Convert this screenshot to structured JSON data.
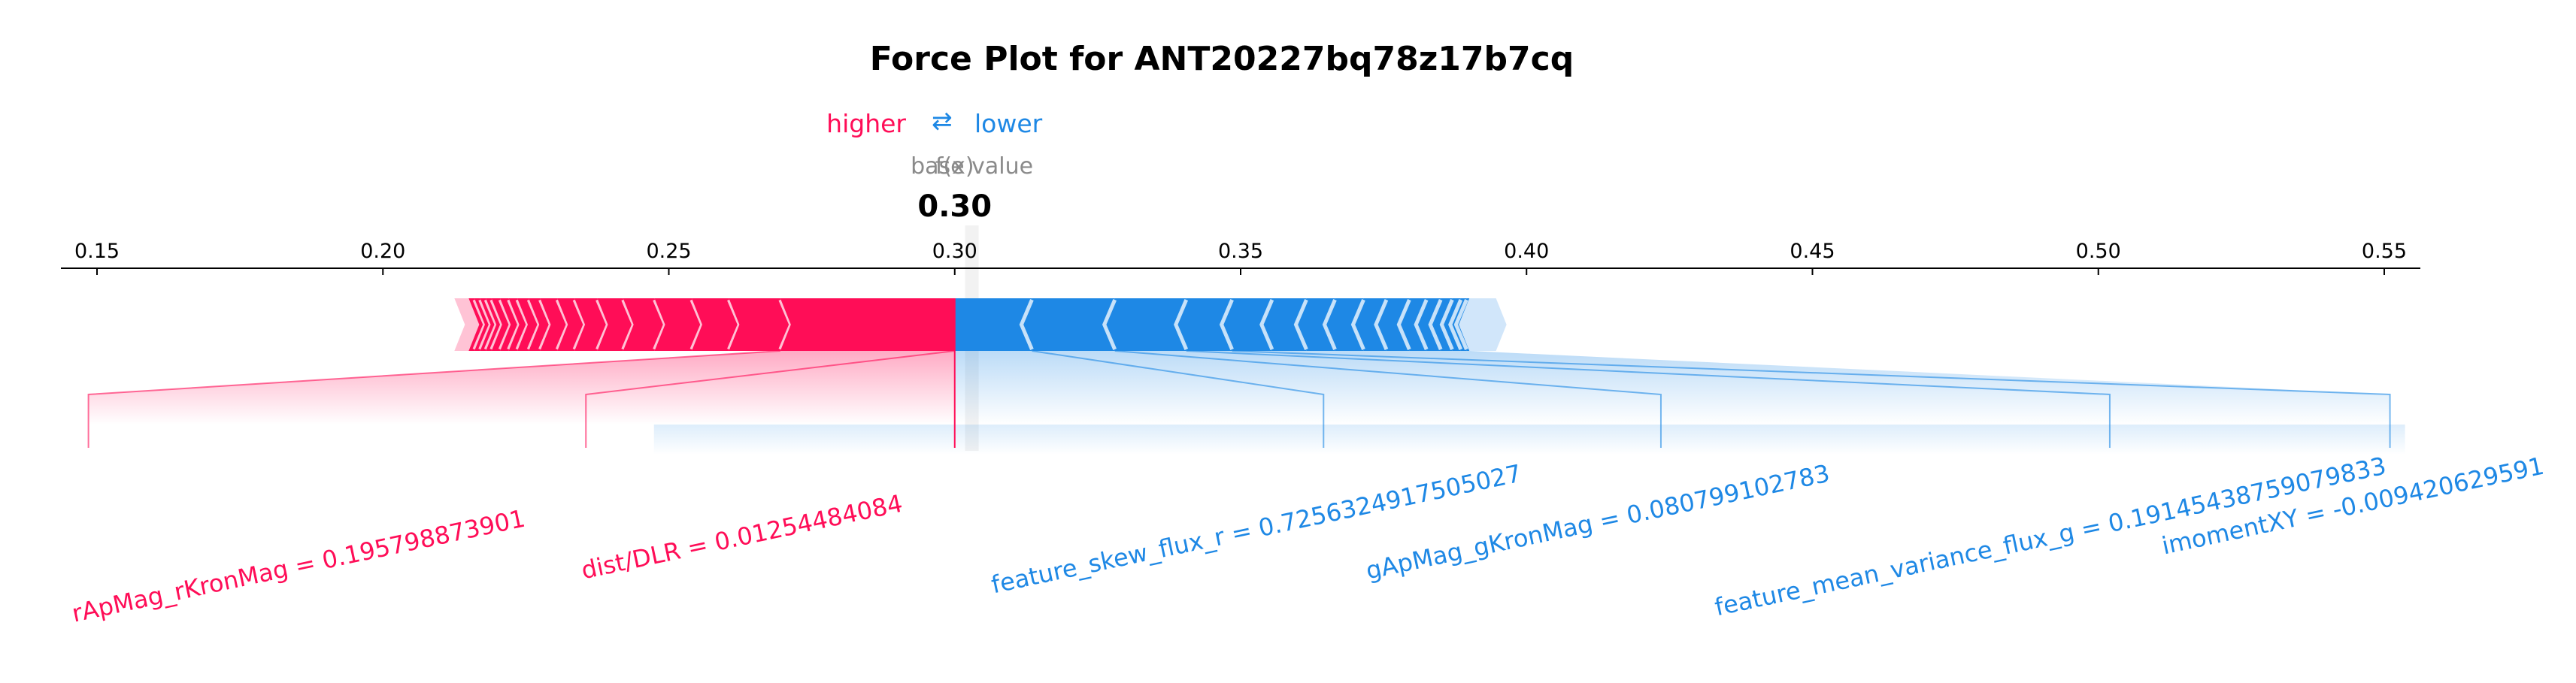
{
  "chart_data": {
    "type": "force",
    "title": "Force Plot for ANT20227bq78z17b7cq",
    "legend": {
      "higher": "higher",
      "arrows": "⇄",
      "lower": "lower"
    },
    "base_value_label": "base value",
    "fx_label": "f(x)",
    "fx_value_text": "0.30",
    "base_value": 0.303,
    "output_value": 0.3,
    "xlim": [
      0.145,
      0.555
    ],
    "ticks": [
      0.15,
      0.2,
      0.25,
      0.3,
      0.35,
      0.4,
      0.45,
      0.5,
      0.55
    ],
    "tick_labels": [
      "0.15",
      "0.20",
      "0.25",
      "0.30",
      "0.35",
      "0.40",
      "0.45",
      "0.50",
      "0.55"
    ],
    "colors": {
      "positive": "#ff0d57",
      "negative": "#1e88e5",
      "positive_light": "#ffc3d5",
      "negative_light": "#d1e6fa"
    },
    "positive_segments": [
      0.215,
      0.216,
      0.217,
      0.218,
      0.219,
      0.2205,
      0.222,
      0.2235,
      0.2255,
      0.2275,
      0.2305,
      0.2335,
      0.2375,
      0.242,
      0.2475,
      0.254,
      0.2605,
      0.2695,
      0.3
    ],
    "negative_segments": [
      0.3,
      0.3135,
      0.328,
      0.3405,
      0.3485,
      0.3555,
      0.3615,
      0.3665,
      0.3715,
      0.3755,
      0.3795,
      0.3825,
      0.385,
      0.387,
      0.3885,
      0.3895,
      0.39
    ],
    "light_pos": [
      0.2125,
      0.215
    ],
    "light_neg": [
      0.39,
      0.3965
    ],
    "features": [
      {
        "label": "rApMag_rKronMag = 0.195798873901",
        "side": "positive",
        "bar_x": 0.2695,
        "anchor": 0.1485,
        "angle": -12
      },
      {
        "label": "dist/DLR = 0.01254484084",
        "side": "positive",
        "bar_x": 0.3,
        "anchor": 0.2355,
        "angle": -12
      },
      {
        "label": "feature_skew_flux_r = 0.7256324917505027",
        "side": "negative",
        "bar_x": 0.3135,
        "anchor": 0.3645,
        "angle": -12
      },
      {
        "label": "gApMag_gKronMag = 0.080799102783",
        "side": "negative",
        "bar_x": 0.328,
        "anchor": 0.4235,
        "angle": -12
      },
      {
        "label": "feature_mean_variance_flux_g = 0.19145438759079833",
        "side": "negative",
        "bar_x": 0.3405,
        "anchor": 0.502,
        "angle": -12
      },
      {
        "label": "imomentXY = -0.009420629591",
        "side": "negative",
        "bar_x": 0.3485,
        "anchor": 0.551,
        "angle": -12
      }
    ]
  }
}
